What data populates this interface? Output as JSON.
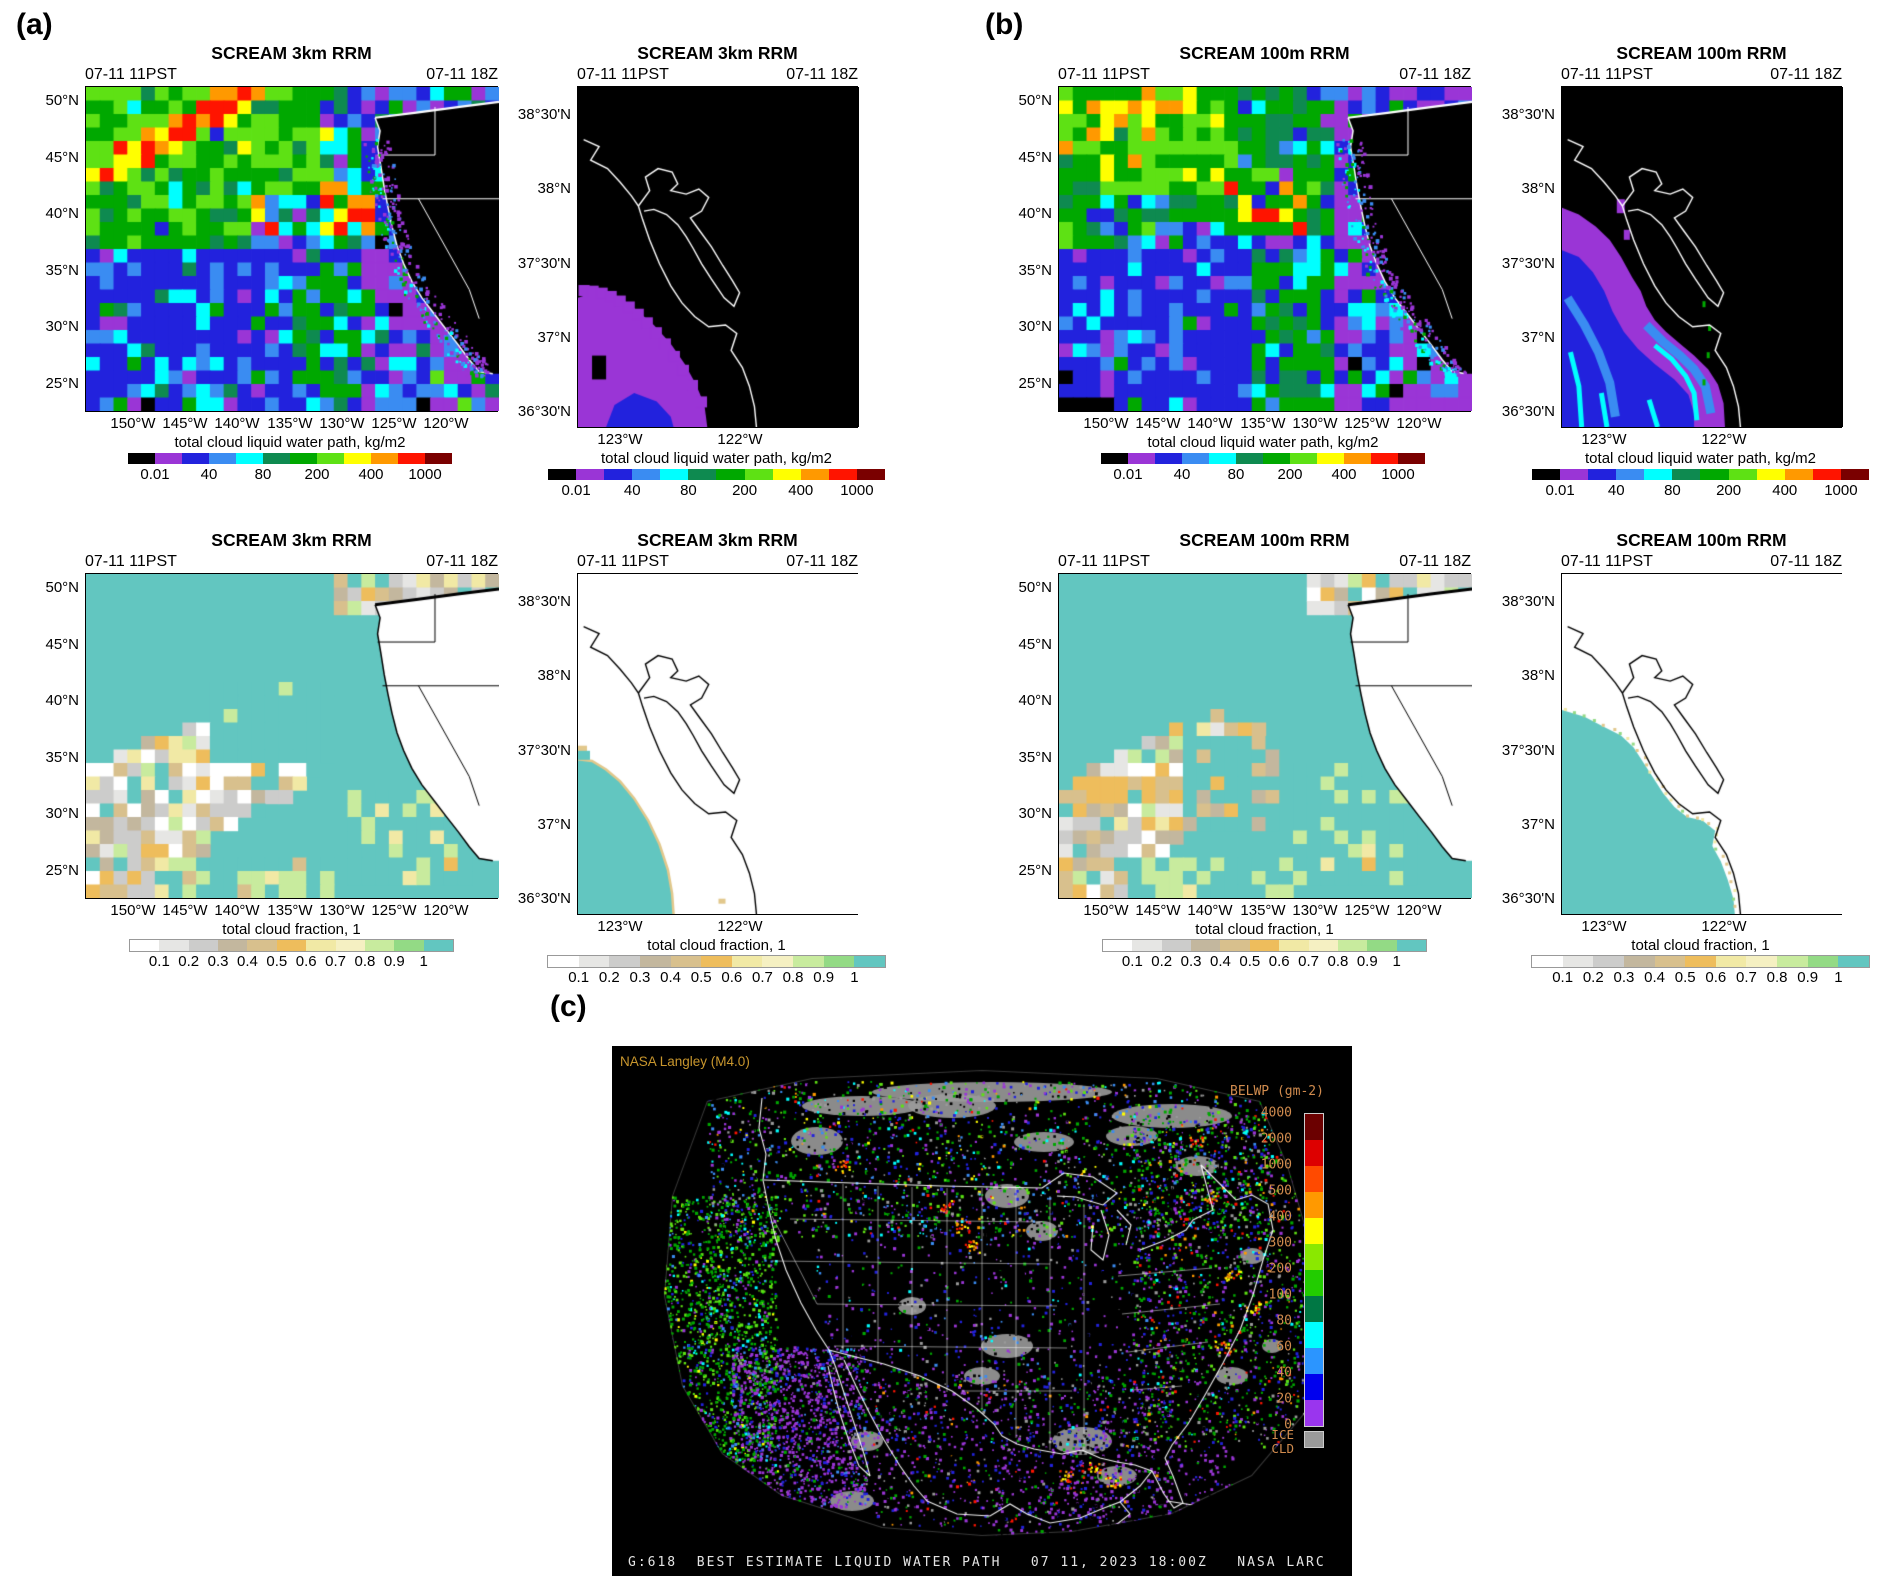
{
  "figure": {
    "panel_a_label": "(a)",
    "panel_b_label": "(b)",
    "panel_c_label": "(c)"
  },
  "shared": {
    "time_left": "07-11 11PST",
    "time_right": "07-11 18Z",
    "wide_y_ticks": [
      "50°N",
      "45°N",
      "40°N",
      "35°N",
      "30°N",
      "25°N"
    ],
    "wide_x_ticks": [
      "150°W",
      "145°W",
      "140°W",
      "135°W",
      "130°W",
      "125°W",
      "120°W"
    ],
    "zoom_y_ticks": [
      "38°30'N",
      "38°N",
      "37°30'N",
      "37°N",
      "36°30'N"
    ],
    "zoom_x_ticks": [
      "123°W",
      "122°W"
    ],
    "lwp_colorbar": {
      "title": "total cloud liquid water path, kg/m2",
      "tick_labels": [
        "0.01",
        "40",
        "80",
        "200",
        "400",
        "1000"
      ],
      "colors": [
        "#000000",
        "#9a35d6",
        "#2222dd",
        "#3a8cf2",
        "#00ffff",
        "#0e8a50",
        "#00a800",
        "#5ee114",
        "#ffff00",
        "#ff9900",
        "#ff1400",
        "#7a0000"
      ]
    },
    "cf_colorbar": {
      "title": "total cloud fraction, 1",
      "tick_labels": [
        "0.1",
        "0.2",
        "0.3",
        "0.4",
        "0.5",
        "0.6",
        "0.7",
        "0.8",
        "0.9",
        "1"
      ],
      "colors": [
        "#ffffff",
        "#e6e6e4",
        "#cccccb",
        "#c3b79e",
        "#d8c08d",
        "#eebd5c",
        "#f1e9a5",
        "#f5f0c2",
        "#c8eb9e",
        "#93da85",
        "#62c6c0"
      ]
    }
  },
  "panel_a": {
    "title": "SCREAM 3km RRM"
  },
  "panel_b": {
    "title": "SCREAM 100m RRM"
  },
  "panel_c": {
    "source_label": "NASA Langley (M4.0)",
    "colorbar_title": "BELWP (gm-2)",
    "colorbar_tick_labels": [
      "4000",
      "2000",
      "1000",
      "500",
      "400",
      "300",
      "200",
      "100",
      "80",
      "60",
      "40",
      "20",
      "0"
    ],
    "colorbar_colors": [
      "#6b0000",
      "#dd0000",
      "#ff4a00",
      "#ff9900",
      "#ffff00",
      "#8ae800",
      "#22cc00",
      "#007744",
      "#00ffff",
      "#2b95ff",
      "#0000ee",
      "#9a35ee"
    ],
    "ice_cloud_label": "ICE\nCLD",
    "ice_cloud_color": "#9a9a9a",
    "caption": "G:618  BEST ESTIMATE LIQUID WATER PATH   07 11, 2023 18:00Z   NASA LARC"
  }
}
